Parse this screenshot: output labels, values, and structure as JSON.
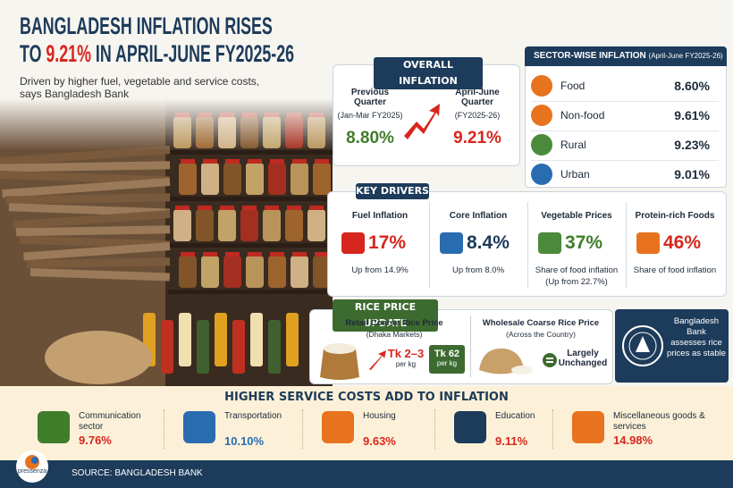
{
  "header": {
    "title_line1": "BANGLADESH INFLATION RISES",
    "title_line2_prefix": "TO",
    "title_highlight": "9.21%",
    "title_line2_suffix": "IN APRIL-JUNE FY2025-26",
    "subtitle": "Driven by higher fuel, vegetable and service costs, says Bangladesh Bank"
  },
  "overall": {
    "heading": "OVERALL INFLATION",
    "previous": {
      "label": "Previous Quarter",
      "period": "(Jan-Mar FY2025)",
      "value": "8.80%"
    },
    "current": {
      "label": "April-June Quarter",
      "period": "(FY2025-26)",
      "value": "9.21%"
    }
  },
  "sector": {
    "heading": "SECTOR-WISE INFLATION",
    "heading_note": "(April-June FY2025-26)",
    "rows": [
      {
        "label": "Food",
        "value": "8.60%"
      },
      {
        "label": "Non-food",
        "value": "9.61%"
      },
      {
        "label": "Rural",
        "value": "9.23%"
      },
      {
        "label": "Urban",
        "value": "9.01%"
      }
    ]
  },
  "drivers": {
    "heading": "KEY DRIVERS",
    "items": [
      {
        "title": "Fuel Inflation",
        "value": "17%",
        "note": "Up from 14.9%"
      },
      {
        "title": "Core Inflation",
        "value": "8.4%",
        "note": "Up from 8.0%"
      },
      {
        "title": "Vegetable Prices",
        "value": "37%",
        "note": "Share of food inflation",
        "note2": "(Up from 22.7%)"
      },
      {
        "title": "Protein-rich Foods",
        "value": "46%",
        "note": "Share of food inflation"
      }
    ]
  },
  "rice": {
    "heading": "RICE PRICE UPDATE",
    "retail": {
      "title": "Retail Coarse Rice Price",
      "subtitle": "(Dhaka Markets)",
      "change": "Tk 2–3",
      "change_unit": "per kg",
      "price": "Tk 62",
      "price_unit": "per kg"
    },
    "wholesale": {
      "title": "Wholesale Coarse Rice Price",
      "subtitle": "(Across the Country)",
      "status": "Largely Unchanged"
    }
  },
  "bank_note": {
    "name": "Bangladesh Bank",
    "text": "assesses rice prices as stable"
  },
  "services": {
    "heading": "HIGHER SERVICE COSTS ADD TO INFLATION",
    "items": [
      {
        "label": "Communication sector",
        "value": "9.76%"
      },
      {
        "label": "Transportation",
        "value": "10.10%"
      },
      {
        "label": "Housing",
        "value": "9.63%"
      },
      {
        "label": "Education",
        "value": "9.11%"
      },
      {
        "label": "Miscellaneous goods & services",
        "value": "14.98%"
      }
    ]
  },
  "footer": {
    "source": "SOURCE: BANGLADESH BANK",
    "logo": "pressenza"
  }
}
